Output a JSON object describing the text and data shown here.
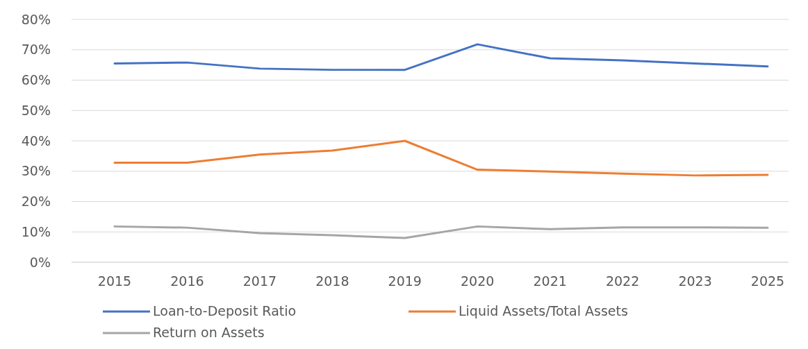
{
  "chart_data": {
    "type": "line",
    "categories": [
      "2015",
      "2016",
      "2017",
      "2018",
      "2019",
      "2020",
      "2021",
      "2022",
      "2023",
      "2025"
    ],
    "series": [
      {
        "name": "Loan-to-Deposit Ratio",
        "color": "#4472c4",
        "values": [
          65.5,
          65.8,
          63.8,
          63.4,
          63.4,
          71.8,
          67.2,
          66.5,
          65.5,
          64.5
        ]
      },
      {
        "name": "Liquid Assets/Total Assets",
        "color": "#ed7d31",
        "values": [
          32.8,
          32.8,
          35.5,
          36.8,
          40,
          30.5,
          29.9,
          29.2,
          28.6,
          28.8
        ]
      },
      {
        "name": "Return on Assets",
        "color": "#a5a5a5",
        "values": [
          11.8,
          11.4,
          9.6,
          8.9,
          8,
          11.8,
          10.9,
          11.5,
          11.5,
          11.4
        ]
      }
    ],
    "ylim": [
      0,
      80
    ],
    "yticks": [
      {
        "value": 0,
        "label": "0%"
      },
      {
        "value": 10,
        "label": "10%"
      },
      {
        "value": 20,
        "label": "20%"
      },
      {
        "value": 30,
        "label": "30%"
      },
      {
        "value": 40,
        "label": "40%"
      },
      {
        "value": 50,
        "label": "50%"
      },
      {
        "value": 60,
        "label": "60%"
      },
      {
        "value": 70,
        "label": "70%"
      },
      {
        "value": 80,
        "label": "80%"
      }
    ],
    "grid": "y",
    "legend": "bottom",
    "marker": "none",
    "line_style": "solid"
  }
}
